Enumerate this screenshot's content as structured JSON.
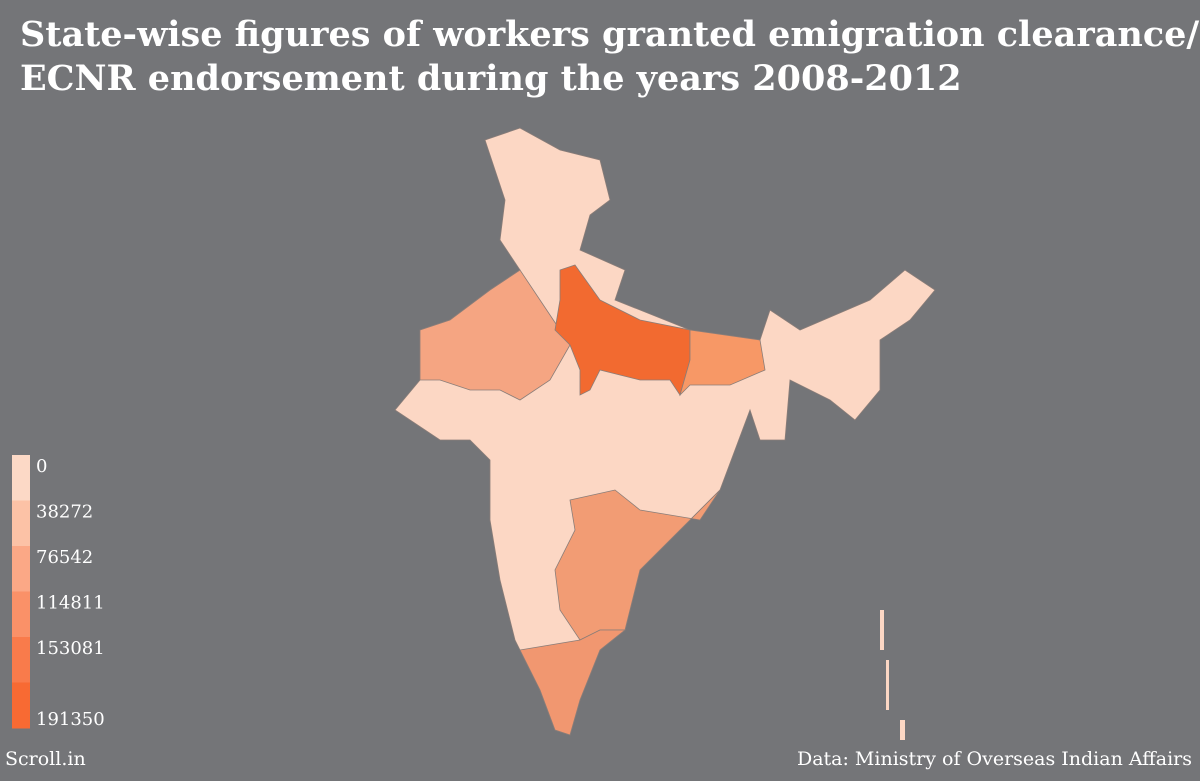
{
  "header": {
    "title": [
      "State-wise figures of workers granted emigration clearance/",
      "ECNR endorsement during the years 2008-2012"
    ]
  },
  "legend": {
    "breaks": [
      0,
      38272,
      76542,
      114811,
      153081,
      191350
    ],
    "colors": [
      "#fcd9c6",
      "#fcc2a6",
      "#fba886",
      "#fa9168",
      "#f97b4b",
      "#f86a33"
    ]
  },
  "footer": {
    "brand": "Scroll.in",
    "source": "Data: Ministry of Overseas Indian Affairs"
  }
}
